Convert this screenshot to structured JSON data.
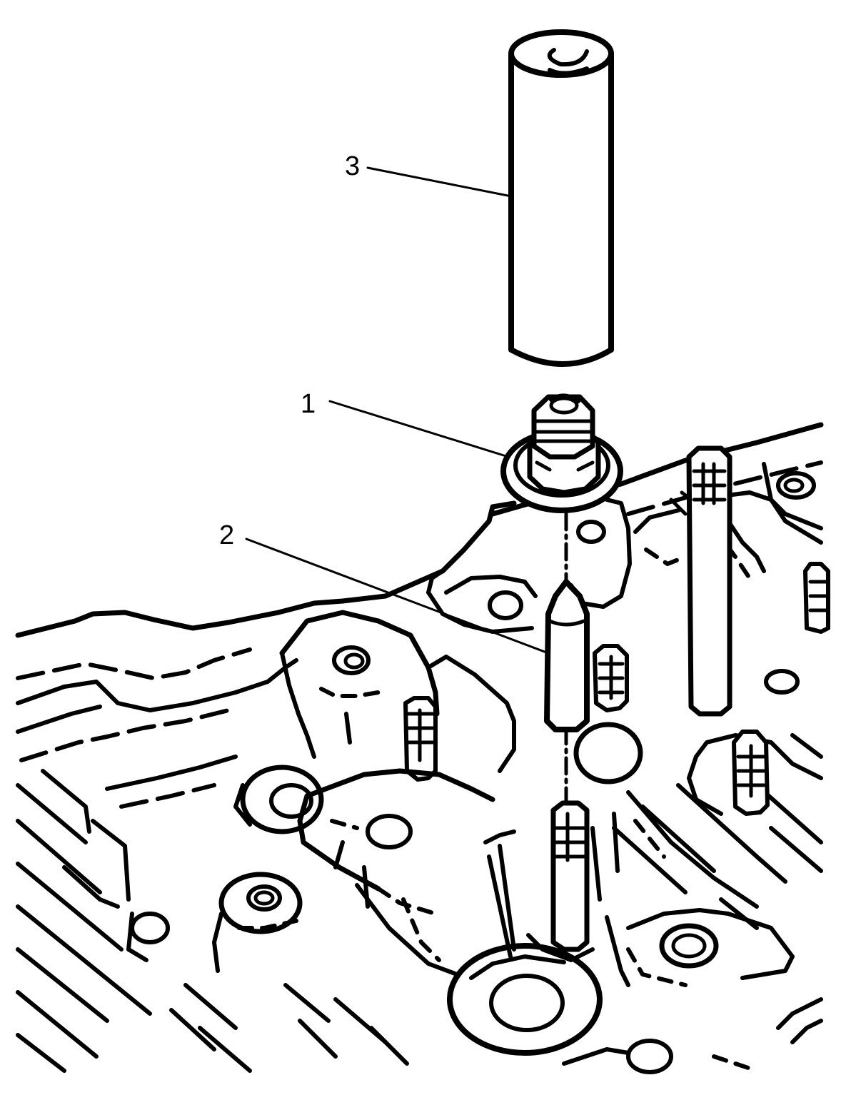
{
  "diagram": {
    "callouts": [
      {
        "id": "callout-1",
        "label": "1"
      },
      {
        "id": "callout-2",
        "label": "2"
      },
      {
        "id": "callout-3",
        "label": "3"
      }
    ],
    "colors": {
      "ink": "#000000",
      "background": "#ffffff"
    }
  }
}
